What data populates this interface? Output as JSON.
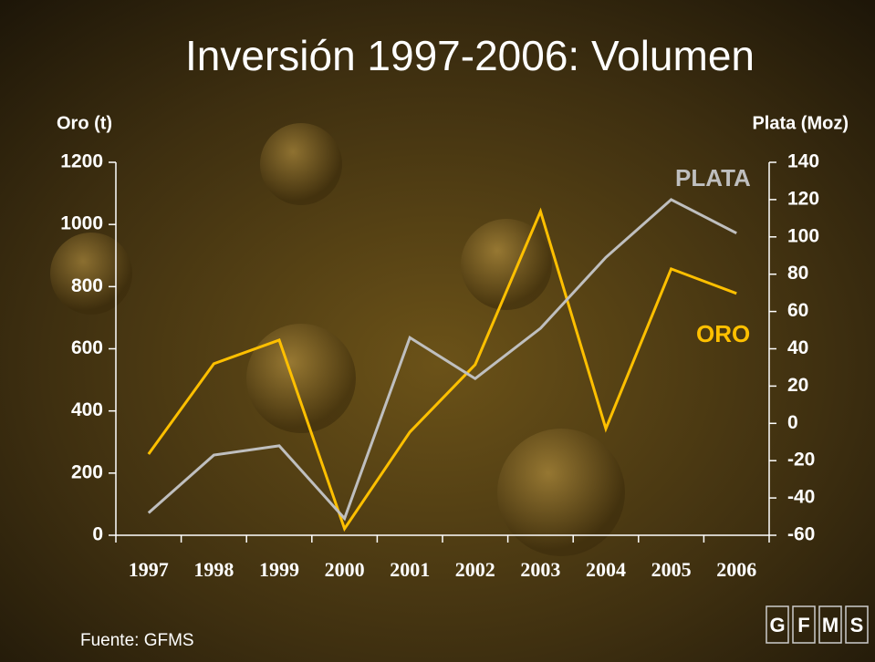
{
  "chart_data": {
    "type": "line",
    "title": "Inversión 1997-2006: Volumen",
    "y_label": "Oro (t)",
    "y2_label": "Plata (Moz)",
    "source": "Fuente: GFMS",
    "logo": [
      "G",
      "F",
      "M",
      "S"
    ],
    "categories": [
      "1997",
      "1998",
      "1999",
      "2000",
      "2001",
      "2002",
      "2003",
      "2004",
      "2005",
      "2006"
    ],
    "series": [
      {
        "name": "ORO",
        "color": "#ffc000",
        "axis": "y",
        "values": [
          261,
          552,
          628,
          21,
          332,
          549,
          1042,
          343,
          857,
          778
        ]
      },
      {
        "name": "PLATA",
        "color": "#bfbfbf",
        "axis": "y2",
        "values": [
          -48,
          -17,
          -12,
          -51,
          46,
          24,
          51,
          89,
          120,
          102
        ]
      }
    ],
    "ylim": [
      0,
      1200
    ],
    "yticks": [
      0,
      200,
      400,
      600,
      800,
      1000,
      1200
    ],
    "y2lim": [
      -60,
      140
    ],
    "y2ticks": [
      -60,
      -40,
      -20,
      0,
      20,
      40,
      60,
      80,
      100,
      120,
      140
    ]
  }
}
